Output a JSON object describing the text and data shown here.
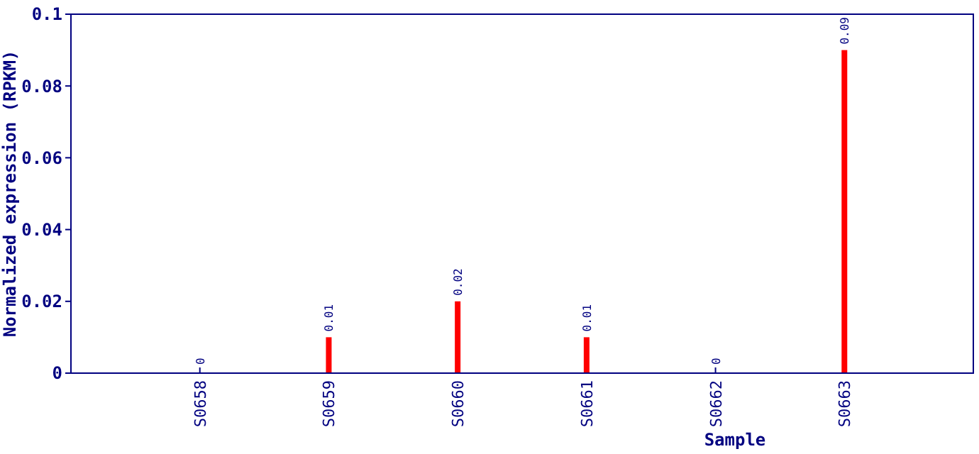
{
  "chart_data": {
    "type": "bar",
    "xlabel": "Sample",
    "ylabel": "Normalized expression (RPKM)",
    "categories": [
      "S0658",
      "S0659",
      "S0660",
      "S0661",
      "S0662",
      "S0663"
    ],
    "values": [
      0,
      0.01,
      0.02,
      0.01,
      0,
      0.09
    ],
    "color": "#ff0000",
    "ylim": [
      0,
      0.1
    ],
    "yticks": [
      0,
      0.02,
      0.04,
      0.06,
      0.08,
      0.1
    ],
    "data_labels": true,
    "grid": false
  }
}
